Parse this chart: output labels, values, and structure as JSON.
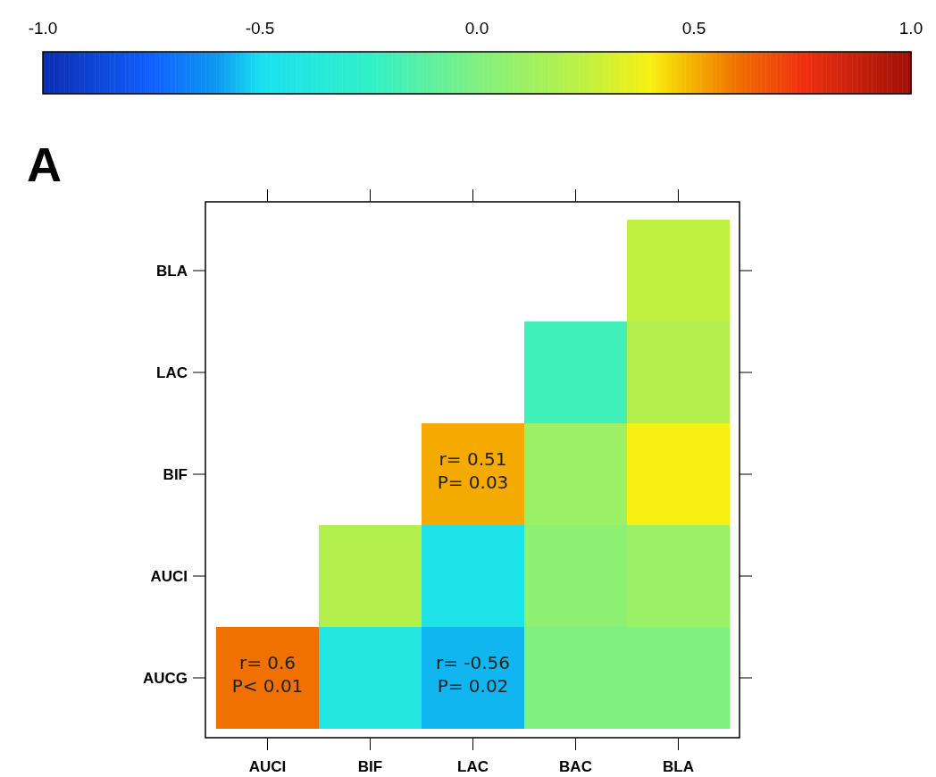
{
  "chart_data": {
    "type": "heatmap",
    "title": "A",
    "categories": [
      "AUCI",
      "BIF",
      "LAC",
      "BAC",
      "BLA"
    ],
    "y_categories": [
      "BLA",
      "LAC",
      "BIF",
      "AUCI",
      "AUCG"
    ],
    "cells": [
      [
        null,
        null,
        null,
        null,
        0.25
      ],
      [
        null,
        null,
        null,
        -0.2,
        0.2
      ],
      [
        null,
        null,
        0.51,
        0.1,
        0.4
      ],
      [
        null,
        0.2,
        -0.45,
        0.05,
        0.1
      ],
      [
        0.6,
        -0.4,
        -0.56,
        0,
        0
      ]
    ],
    "cell_labels": [
      [
        null,
        null,
        null,
        null,
        null
      ],
      [
        null,
        null,
        null,
        null,
        null
      ],
      [
        null,
        null,
        "r= 0.51\nP= 0.03",
        null,
        null
      ],
      [
        null,
        null,
        null,
        null,
        null
      ],
      [
        "r= 0.6\nP< 0.01",
        null,
        "r= -0.56\nP= 0.02",
        null,
        null
      ]
    ],
    "clim": [
      -1,
      1
    ],
    "cticks": [
      {
        "value": -1,
        "label": "-1.0"
      },
      {
        "value": -0.5,
        "label": "-0.5"
      },
      {
        "value": 0,
        "label": "0.0"
      },
      {
        "value": 0.5,
        "label": "0.5"
      },
      {
        "value": 1,
        "label": "1.0"
      }
    ]
  }
}
